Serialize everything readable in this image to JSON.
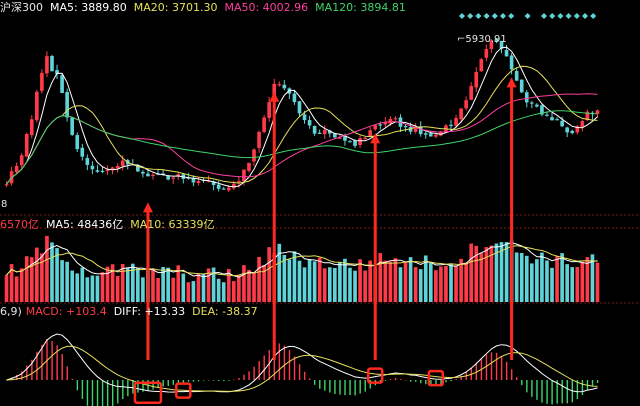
{
  "colors": {
    "background": "#000000",
    "up": "#ff3b4a",
    "down": "#5fd3d8",
    "ma5": "#ffffff",
    "ma20": "#e6e05a",
    "ma50": "#ff3fa0",
    "ma120": "#3fd46a",
    "diff": "#ffffff",
    "dea": "#e6e05a",
    "annotation": "#ff2a1f",
    "grid": "#7a1a1a"
  },
  "main_legend": {
    "symbol": "沪深300",
    "ma5_label": "MA5:",
    "ma5_value": "3889.80",
    "ma20_label": "MA20:",
    "ma20_value": "3701.30",
    "ma50_label": "MA50:",
    "ma50_value": "4002.96",
    "ma120_label": "MA120:",
    "ma120_value": "3894.81"
  },
  "volume_legend": {
    "total": "6570亿",
    "ma5_label": "MA5:",
    "ma5_value": "48436亿",
    "ma10_label": "MA10:",
    "ma10_value": "63339亿"
  },
  "macd_legend": {
    "params": "6,9)",
    "macd_label": "MACD:",
    "macd_value": "+103.4",
    "diff_label": "DIFF:",
    "diff_value": "+13.33",
    "dea_label": "DEA:",
    "dea_value": "-38.37"
  },
  "annotations": {
    "peak_price": "5930.91",
    "left_edge_label": "8"
  },
  "chart_data": [
    {
      "type": "candlestick",
      "title": "沪深300",
      "series": [
        {
          "name": "MA5",
          "last": 3889.8
        },
        {
          "name": "MA20",
          "last": 3701.3
        },
        {
          "name": "MA50",
          "last": 4002.96
        },
        {
          "name": "MA120",
          "last": 3894.81
        }
      ],
      "close_path": [
        4050,
        4300,
        4880,
        5660,
        5380,
        4700,
        4300,
        4150,
        4230,
        4290,
        4210,
        4140,
        4120,
        4100,
        4080,
        4060,
        4020,
        3920,
        4020,
        4300,
        4880,
        5360,
        5200,
        4830,
        4700,
        4680,
        4630,
        4500,
        4620,
        4780,
        4850,
        4750,
        4700,
        4650,
        4720,
        4850,
        5210,
        5630,
        5930.91,
        5610,
        5200,
        5010,
        4880,
        4790,
        4680,
        4890,
        4940
      ],
      "highlighted_bars": [
        11,
        21,
        29,
        40
      ],
      "annotations": [
        "5930.91"
      ]
    },
    {
      "type": "bar",
      "title": "",
      "series": [
        {
          "name": "MA5",
          "last": "48436亿"
        },
        {
          "name": "MA10",
          "last": "63339亿"
        }
      ],
      "last_total": "6570亿"
    },
    {
      "type": "bar",
      "title": "",
      "series": [
        {
          "name": "MACD",
          "last": 103.4
        },
        {
          "name": "DIFF",
          "last": 13.33
        },
        {
          "name": "DEA",
          "last": -38.37
        }
      ],
      "highlighted_bars": [
        11,
        14,
        29,
        34
      ]
    }
  ]
}
